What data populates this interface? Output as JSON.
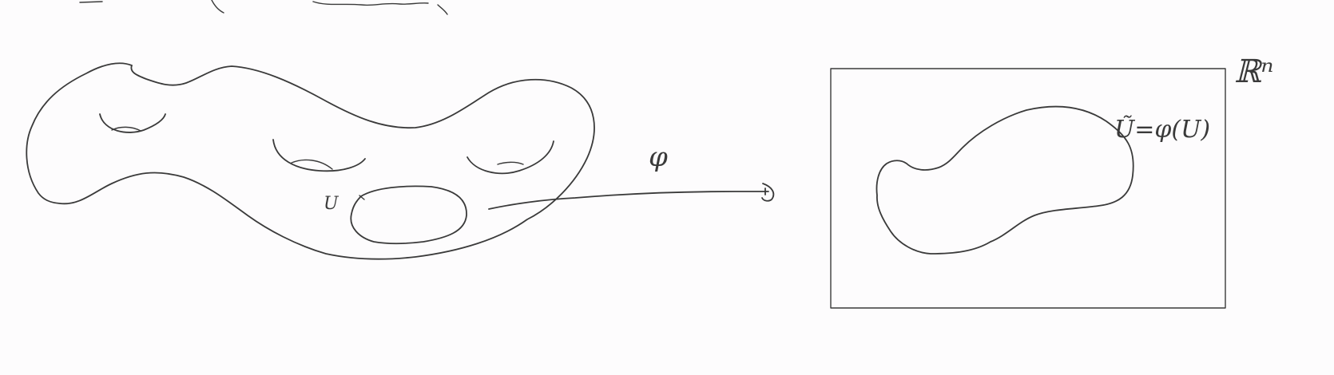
{
  "labels": {
    "open_set": "U",
    "map": "φ",
    "euclidean_space": "ℝⁿ",
    "image_set": "Ũ=φ(U)"
  },
  "colors": {
    "background": "#fdfcfd",
    "ink": "#3a3a3a"
  }
}
